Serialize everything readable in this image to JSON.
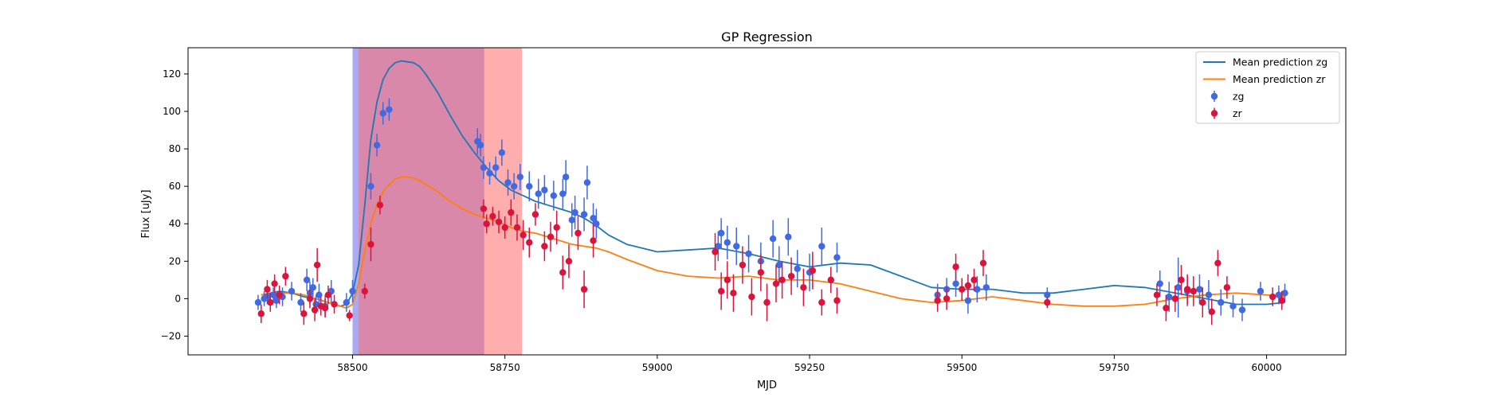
{
  "chart_data": {
    "type": "scatter",
    "title": "GP Regression",
    "xlabel": "MJD",
    "ylabel": "Flux [uJy]",
    "xlim": [
      58230,
      60130
    ],
    "ylim": [
      -30,
      134
    ],
    "xticks": [
      58500,
      58750,
      59000,
      59250,
      59500,
      59750,
      60000
    ],
    "yticks": [
      -20,
      0,
      20,
      40,
      60,
      80,
      100,
      120
    ],
    "grid": false,
    "legend_position": "top-right",
    "shaded_regions": [
      {
        "x0": 58500,
        "x1": 58716,
        "color": "#5656e8",
        "opacity": 0.5
      },
      {
        "x0": 58510,
        "x1": 58778,
        "color": "#ff6b6b",
        "opacity": 0.55
      }
    ],
    "series": [
      {
        "name": "Mean prediction zg",
        "kind": "line",
        "color": "#1f77b4",
        "x": [
          58350,
          58380,
          58400,
          58420,
          58440,
          58460,
          58480,
          58490,
          58500,
          58510,
          58520,
          58530,
          58540,
          58550,
          58560,
          58570,
          58580,
          58590,
          58600,
          58610,
          58620,
          58640,
          58660,
          58680,
          58700,
          58720,
          58740,
          58760,
          58780,
          58800,
          58820,
          58840,
          58860,
          58880,
          58900,
          58920,
          58950,
          59000,
          59050,
          59100,
          59150,
          59200,
          59250,
          59300,
          59350,
          59400,
          59450,
          59500,
          59550,
          59600,
          59650,
          59700,
          59750,
          59800,
          59850,
          59900,
          59950,
          60000,
          60030
        ],
        "y": [
          2,
          4,
          3,
          1,
          0,
          -2,
          -4,
          -3,
          3,
          18,
          50,
          85,
          105,
          117,
          123,
          126,
          127,
          126.5,
          126,
          124,
          120,
          110,
          98,
          87,
          78,
          70,
          63,
          58,
          55,
          52,
          50,
          48,
          46,
          43,
          39,
          34,
          29,
          25,
          26,
          27,
          24,
          20,
          17,
          19,
          18,
          12,
          6,
          5,
          5,
          3,
          3,
          5,
          7,
          6,
          3,
          0,
          -3,
          -3,
          -2
        ]
      },
      {
        "name": "Mean prediction zr",
        "kind": "line",
        "color": "#ff7f0e",
        "x": [
          58350,
          58380,
          58400,
          58420,
          58440,
          58460,
          58480,
          58490,
          58500,
          58510,
          58520,
          58530,
          58540,
          58550,
          58560,
          58570,
          58580,
          58590,
          58600,
          58610,
          58620,
          58640,
          58660,
          58680,
          58700,
          58720,
          58740,
          58760,
          58780,
          58800,
          58820,
          58840,
          58860,
          58880,
          58900,
          58920,
          58950,
          59000,
          59050,
          59100,
          59150,
          59200,
          59250,
          59300,
          59350,
          59400,
          59450,
          59500,
          59550,
          59600,
          59650,
          59700,
          59750,
          59800,
          59850,
          59900,
          59950,
          60000,
          60030
        ],
        "y": [
          2,
          3,
          3,
          2,
          0,
          -2,
          -4,
          -5,
          -3,
          8,
          25,
          40,
          50,
          57,
          61,
          64,
          65,
          65,
          64.5,
          63,
          61,
          57,
          52,
          48,
          45,
          43,
          41,
          38,
          36,
          35,
          33,
          31,
          29,
          28,
          27,
          25,
          21,
          15,
          12,
          11,
          12,
          10,
          10,
          8,
          4,
          0,
          -2,
          -1,
          1,
          -1,
          -3,
          -4,
          -4,
          -3,
          0,
          2,
          3,
          2,
          1
        ]
      },
      {
        "name": "zg",
        "kind": "errorbar",
        "color": "#4169e1",
        "x": [
          58345,
          58355,
          58360,
          58370,
          58375,
          58385,
          58400,
          58415,
          58425,
          58430,
          58435,
          58440,
          58445,
          58455,
          58465,
          58490,
          58500,
          58530,
          58540,
          58550,
          58560,
          58705,
          58710,
          58715,
          58725,
          58735,
          58745,
          58755,
          58765,
          58775,
          58790,
          58805,
          58815,
          58830,
          58845,
          58850,
          58860,
          58865,
          58880,
          58885,
          58895,
          58900,
          59100,
          59105,
          59115,
          59130,
          59150,
          59170,
          59190,
          59200,
          59215,
          59230,
          59250,
          59270,
          59295,
          59460,
          59475,
          59490,
          59510,
          59525,
          59540,
          59640,
          59825,
          59840,
          59855,
          59870,
          59890,
          59905,
          59925,
          59945,
          59960,
          59990,
          60020,
          60030
        ],
        "y": [
          -2,
          0,
          1,
          2,
          -1,
          1,
          4,
          -2,
          10,
          3,
          6,
          -3,
          2,
          -4,
          4,
          -2,
          4,
          60,
          82,
          99,
          101,
          84,
          82,
          70,
          67,
          70,
          78,
          62,
          60,
          65,
          60,
          56,
          58,
          55,
          56,
          65,
          42,
          46,
          45,
          62,
          43,
          40,
          28,
          35,
          30,
          28,
          24,
          20,
          32,
          18,
          33,
          16,
          14,
          28,
          22,
          2,
          5,
          8,
          -1,
          5,
          6,
          2,
          8,
          1,
          6,
          4,
          5,
          2,
          -2,
          -4,
          -6,
          4,
          2,
          3
        ],
        "err": [
          4,
          4,
          4,
          4,
          4,
          5,
          5,
          5,
          6,
          6,
          5,
          5,
          6,
          6,
          6,
          5,
          6,
          7,
          6,
          6,
          6,
          7,
          6,
          6,
          6,
          6,
          7,
          7,
          7,
          7,
          8,
          8,
          8,
          8,
          8,
          9,
          9,
          9,
          9,
          9,
          8,
          8,
          8,
          8,
          9,
          10,
          10,
          10,
          10,
          10,
          10,
          10,
          10,
          10,
          8,
          6,
          6,
          7,
          7,
          7,
          7,
          4,
          7,
          8,
          16,
          8,
          8,
          8,
          7,
          6,
          6,
          5,
          5,
          5
        ]
      },
      {
        "name": "zr",
        "kind": "errorbar",
        "color": "#dc143c",
        "x": [
          58350,
          58360,
          58365,
          58372,
          58380,
          58390,
          58420,
          58430,
          58438,
          58442,
          58448,
          58455,
          58460,
          58470,
          58495,
          58520,
          58530,
          58545,
          58715,
          58720,
          58730,
          58740,
          58750,
          58760,
          58770,
          58780,
          58790,
          58800,
          58815,
          58825,
          58835,
          58845,
          58855,
          58870,
          58880,
          58895,
          59095,
          59105,
          59115,
          59125,
          59140,
          59155,
          59170,
          59180,
          59195,
          59205,
          59220,
          59240,
          59255,
          59270,
          59285,
          59295,
          59460,
          59475,
          59490,
          59500,
          59510,
          59520,
          59535,
          59640,
          59820,
          59835,
          59850,
          59860,
          59870,
          59880,
          59895,
          59910,
          59920,
          59935,
          60010,
          60025
        ],
        "y": [
          -8,
          5,
          -2,
          8,
          2,
          12,
          -8,
          0,
          -6,
          18,
          -4,
          -5,
          2,
          -3,
          -9,
          4,
          29,
          50,
          48,
          40,
          44,
          41,
          38,
          46,
          38,
          34,
          30,
          45,
          28,
          33,
          38,
          14,
          20,
          35,
          5,
          31,
          25,
          4,
          10,
          3,
          18,
          1,
          14,
          -2,
          8,
          10,
          12,
          6,
          15,
          -2,
          10,
          -1,
          -1,
          0,
          17,
          5,
          7,
          10,
          19,
          -2,
          2,
          -5,
          0,
          10,
          5,
          4,
          -2,
          -7,
          19,
          6,
          1,
          -1
        ],
        "err": [
          5,
          5,
          5,
          5,
          5,
          5,
          6,
          5,
          6,
          9,
          5,
          5,
          5,
          5,
          3,
          4,
          9,
          5,
          5,
          5,
          5,
          6,
          6,
          7,
          7,
          8,
          8,
          6,
          8,
          8,
          9,
          9,
          9,
          9,
          10,
          9,
          10,
          10,
          10,
          10,
          10,
          10,
          10,
          10,
          10,
          10,
          10,
          10,
          10,
          7,
          7,
          7,
          6,
          6,
          7,
          6,
          6,
          6,
          7,
          3,
          6,
          7,
          7,
          8,
          8,
          8,
          8,
          7,
          7,
          6,
          5,
          5
        ]
      }
    ]
  }
}
